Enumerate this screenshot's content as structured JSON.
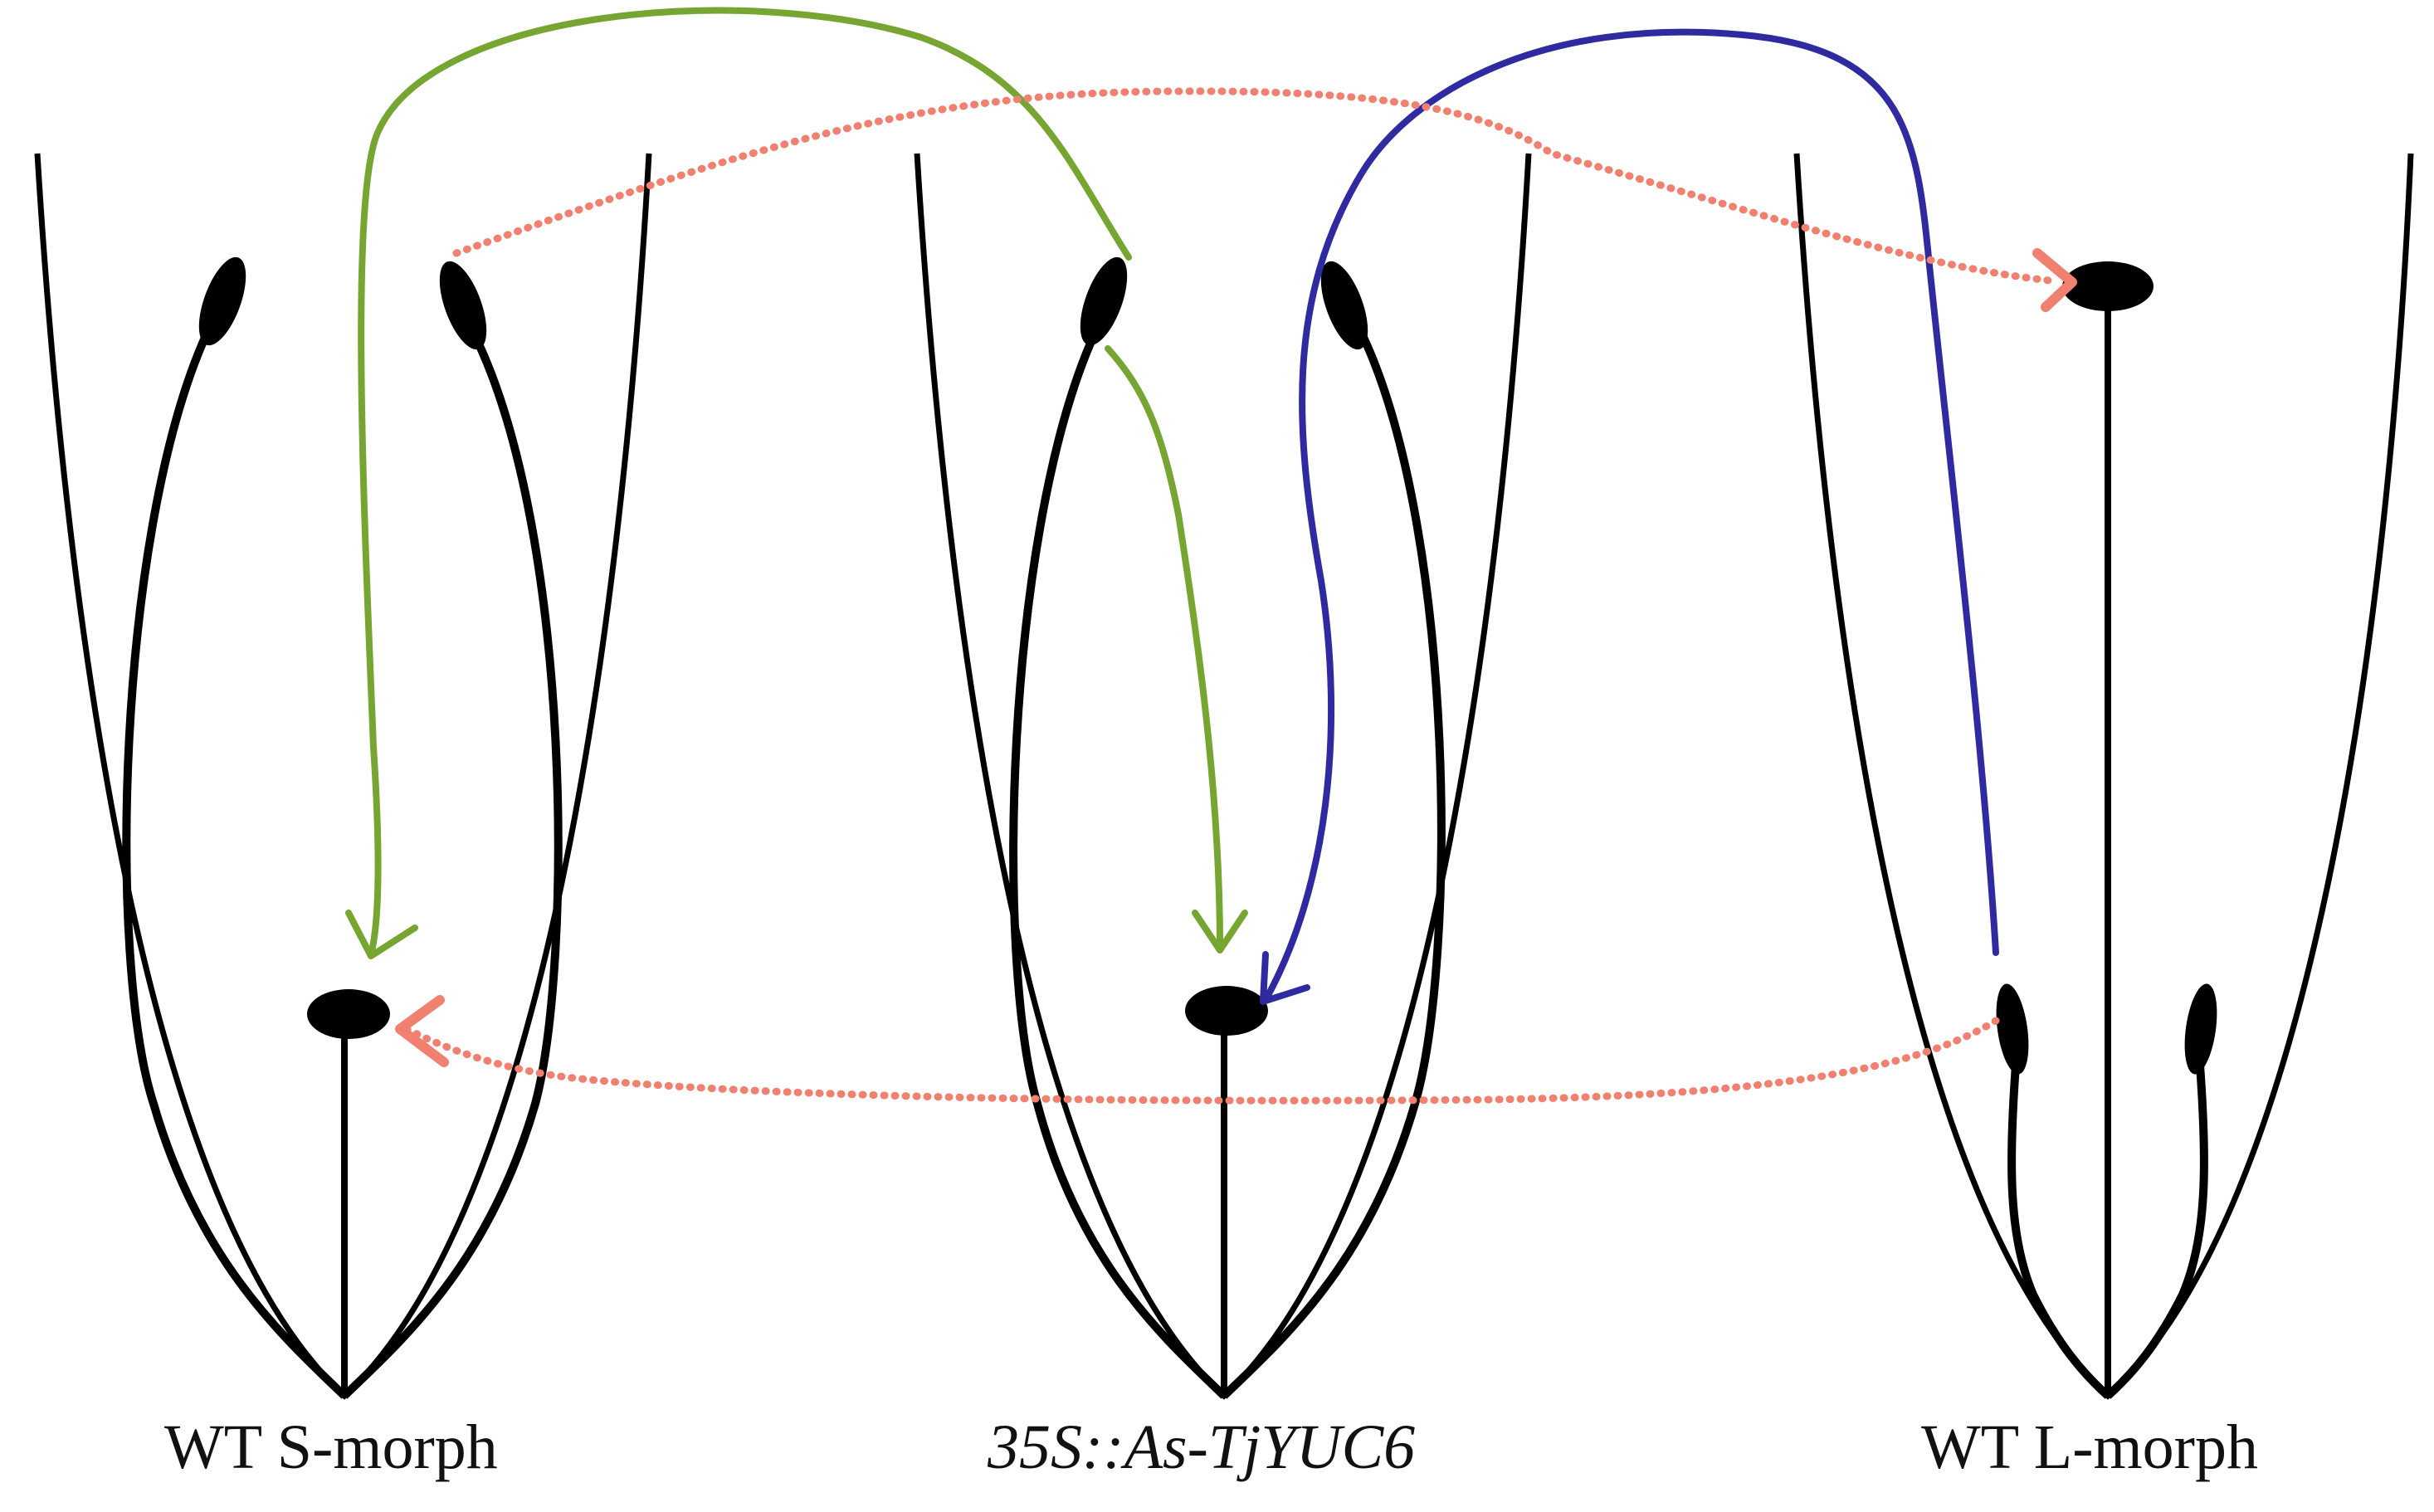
{
  "labels": {
    "left": "WT S-morph",
    "middle": "35S::As-TjYUC6",
    "right": "WT L-morph"
  },
  "colors": {
    "outline": "#000000",
    "green_arrow": "#76a532",
    "blue_arrow": "#2f2aa0",
    "red_dotted_arrow": "#f08070"
  }
}
